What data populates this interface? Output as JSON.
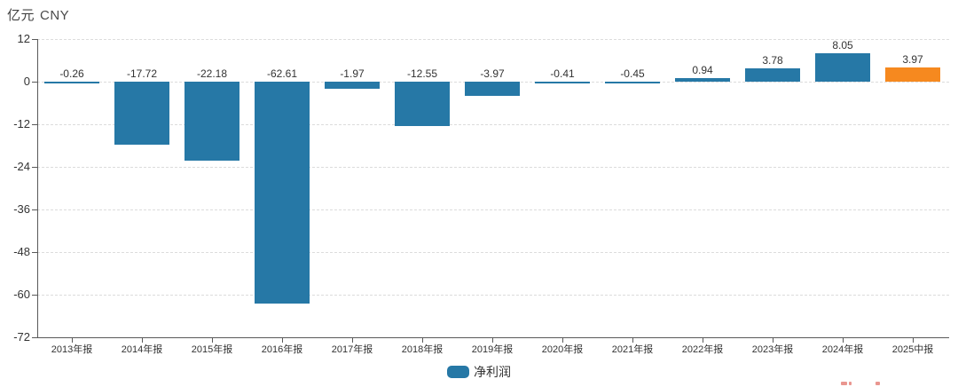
{
  "header": {
    "unit_label": "亿元",
    "currency_label": "CNY"
  },
  "legend": {
    "position": "bottom-center",
    "items": [
      {
        "label": "净利润",
        "color": "#2678a6"
      }
    ]
  },
  "colors": {
    "bar_default": "#2678a6",
    "bar_highlight": "#f6891f",
    "axis": "#595959",
    "gridline": "#dcdcdc",
    "text": "#333333",
    "watermark": "#e2736b"
  },
  "chart_data": {
    "type": "bar",
    "title": "",
    "unit": "亿元 CNY",
    "xlabel": "",
    "ylabel": "亿元 CNY",
    "categories": [
      "2013年报",
      "2014年报",
      "2015年报",
      "2016年报",
      "2017年报",
      "2018年报",
      "2019年报",
      "2020年报",
      "2021年报",
      "2022年报",
      "2023年报",
      "2024年报",
      "2025中报"
    ],
    "series": [
      {
        "name": "净利润",
        "values": [
          -0.26,
          -17.72,
          -22.18,
          -62.61,
          -1.97,
          -12.55,
          -3.97,
          -0.41,
          -0.45,
          0.94,
          3.78,
          8.05,
          3.97
        ],
        "value_labels": [
          "-0.26",
          "-17.72",
          "-22.18",
          "-62.61",
          "-1.97",
          "-12.55",
          "-3.97",
          "-0.41",
          "-0.45",
          "0.94",
          "3.78",
          "8.05",
          "3.97"
        ],
        "bar_colors": [
          "#2678a6",
          "#2678a6",
          "#2678a6",
          "#2678a6",
          "#2678a6",
          "#2678a6",
          "#2678a6",
          "#2678a6",
          "#2678a6",
          "#2678a6",
          "#2678a6",
          "#2678a6",
          "#f6891f"
        ]
      }
    ],
    "yticks": [
      12,
      0,
      -12,
      -24,
      -36,
      -48,
      -60,
      -72
    ],
    "ylim": [
      -72,
      12
    ],
    "grid": "horizontal-dashed",
    "legend_position": "bottom-center"
  }
}
